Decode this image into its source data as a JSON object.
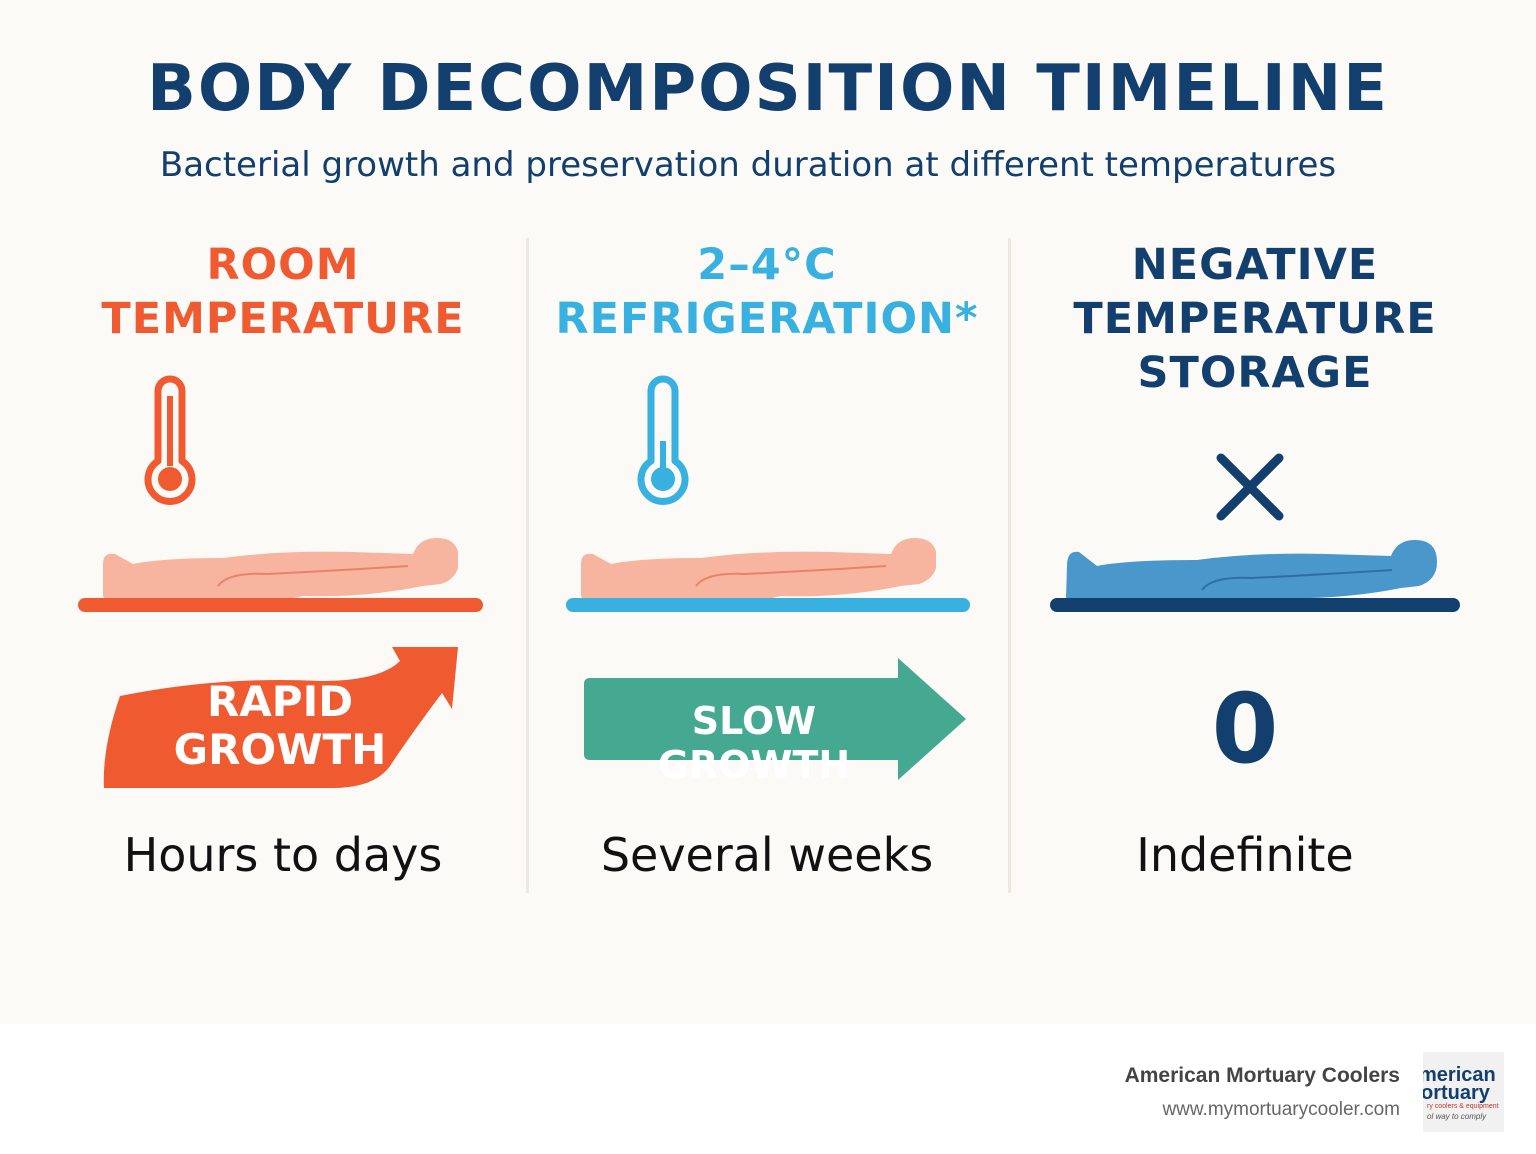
{
  "title": "BODY DECOMPOSITION TIMELINE",
  "subtitle": "Bacterial growth and preservation duration at different temperatures",
  "columns": [
    {
      "title": "ROOM\nTEMPERATURE",
      "color": "#f05a30",
      "icon": "thermometer-icon",
      "growth_label": "RAPID\nGROWTH",
      "growth_color": "#f05a30",
      "duration": "Hours to days"
    },
    {
      "title": "2–4°C\nREFRIGERATION*",
      "color": "#38b0e0",
      "icon": "thermometer-icon",
      "growth_label": "SLOW GROWTH",
      "growth_color": "#45a890",
      "duration": "Several weeks"
    },
    {
      "title": "NEGATIVE\nTEMPERATURE\nSTORAGE",
      "color": "#123f6e",
      "icon": "cross-icon",
      "growth_label": "0",
      "growth_color": "#123f6e",
      "duration": "Indefinite"
    }
  ],
  "footer": {
    "brand_name": "American Mortuary Coolers",
    "url": "www.mymortuarycooler.com",
    "logo_lines": [
      "merican",
      "ortuary",
      "ry coolers & equipment",
      "ol way to comply"
    ]
  }
}
